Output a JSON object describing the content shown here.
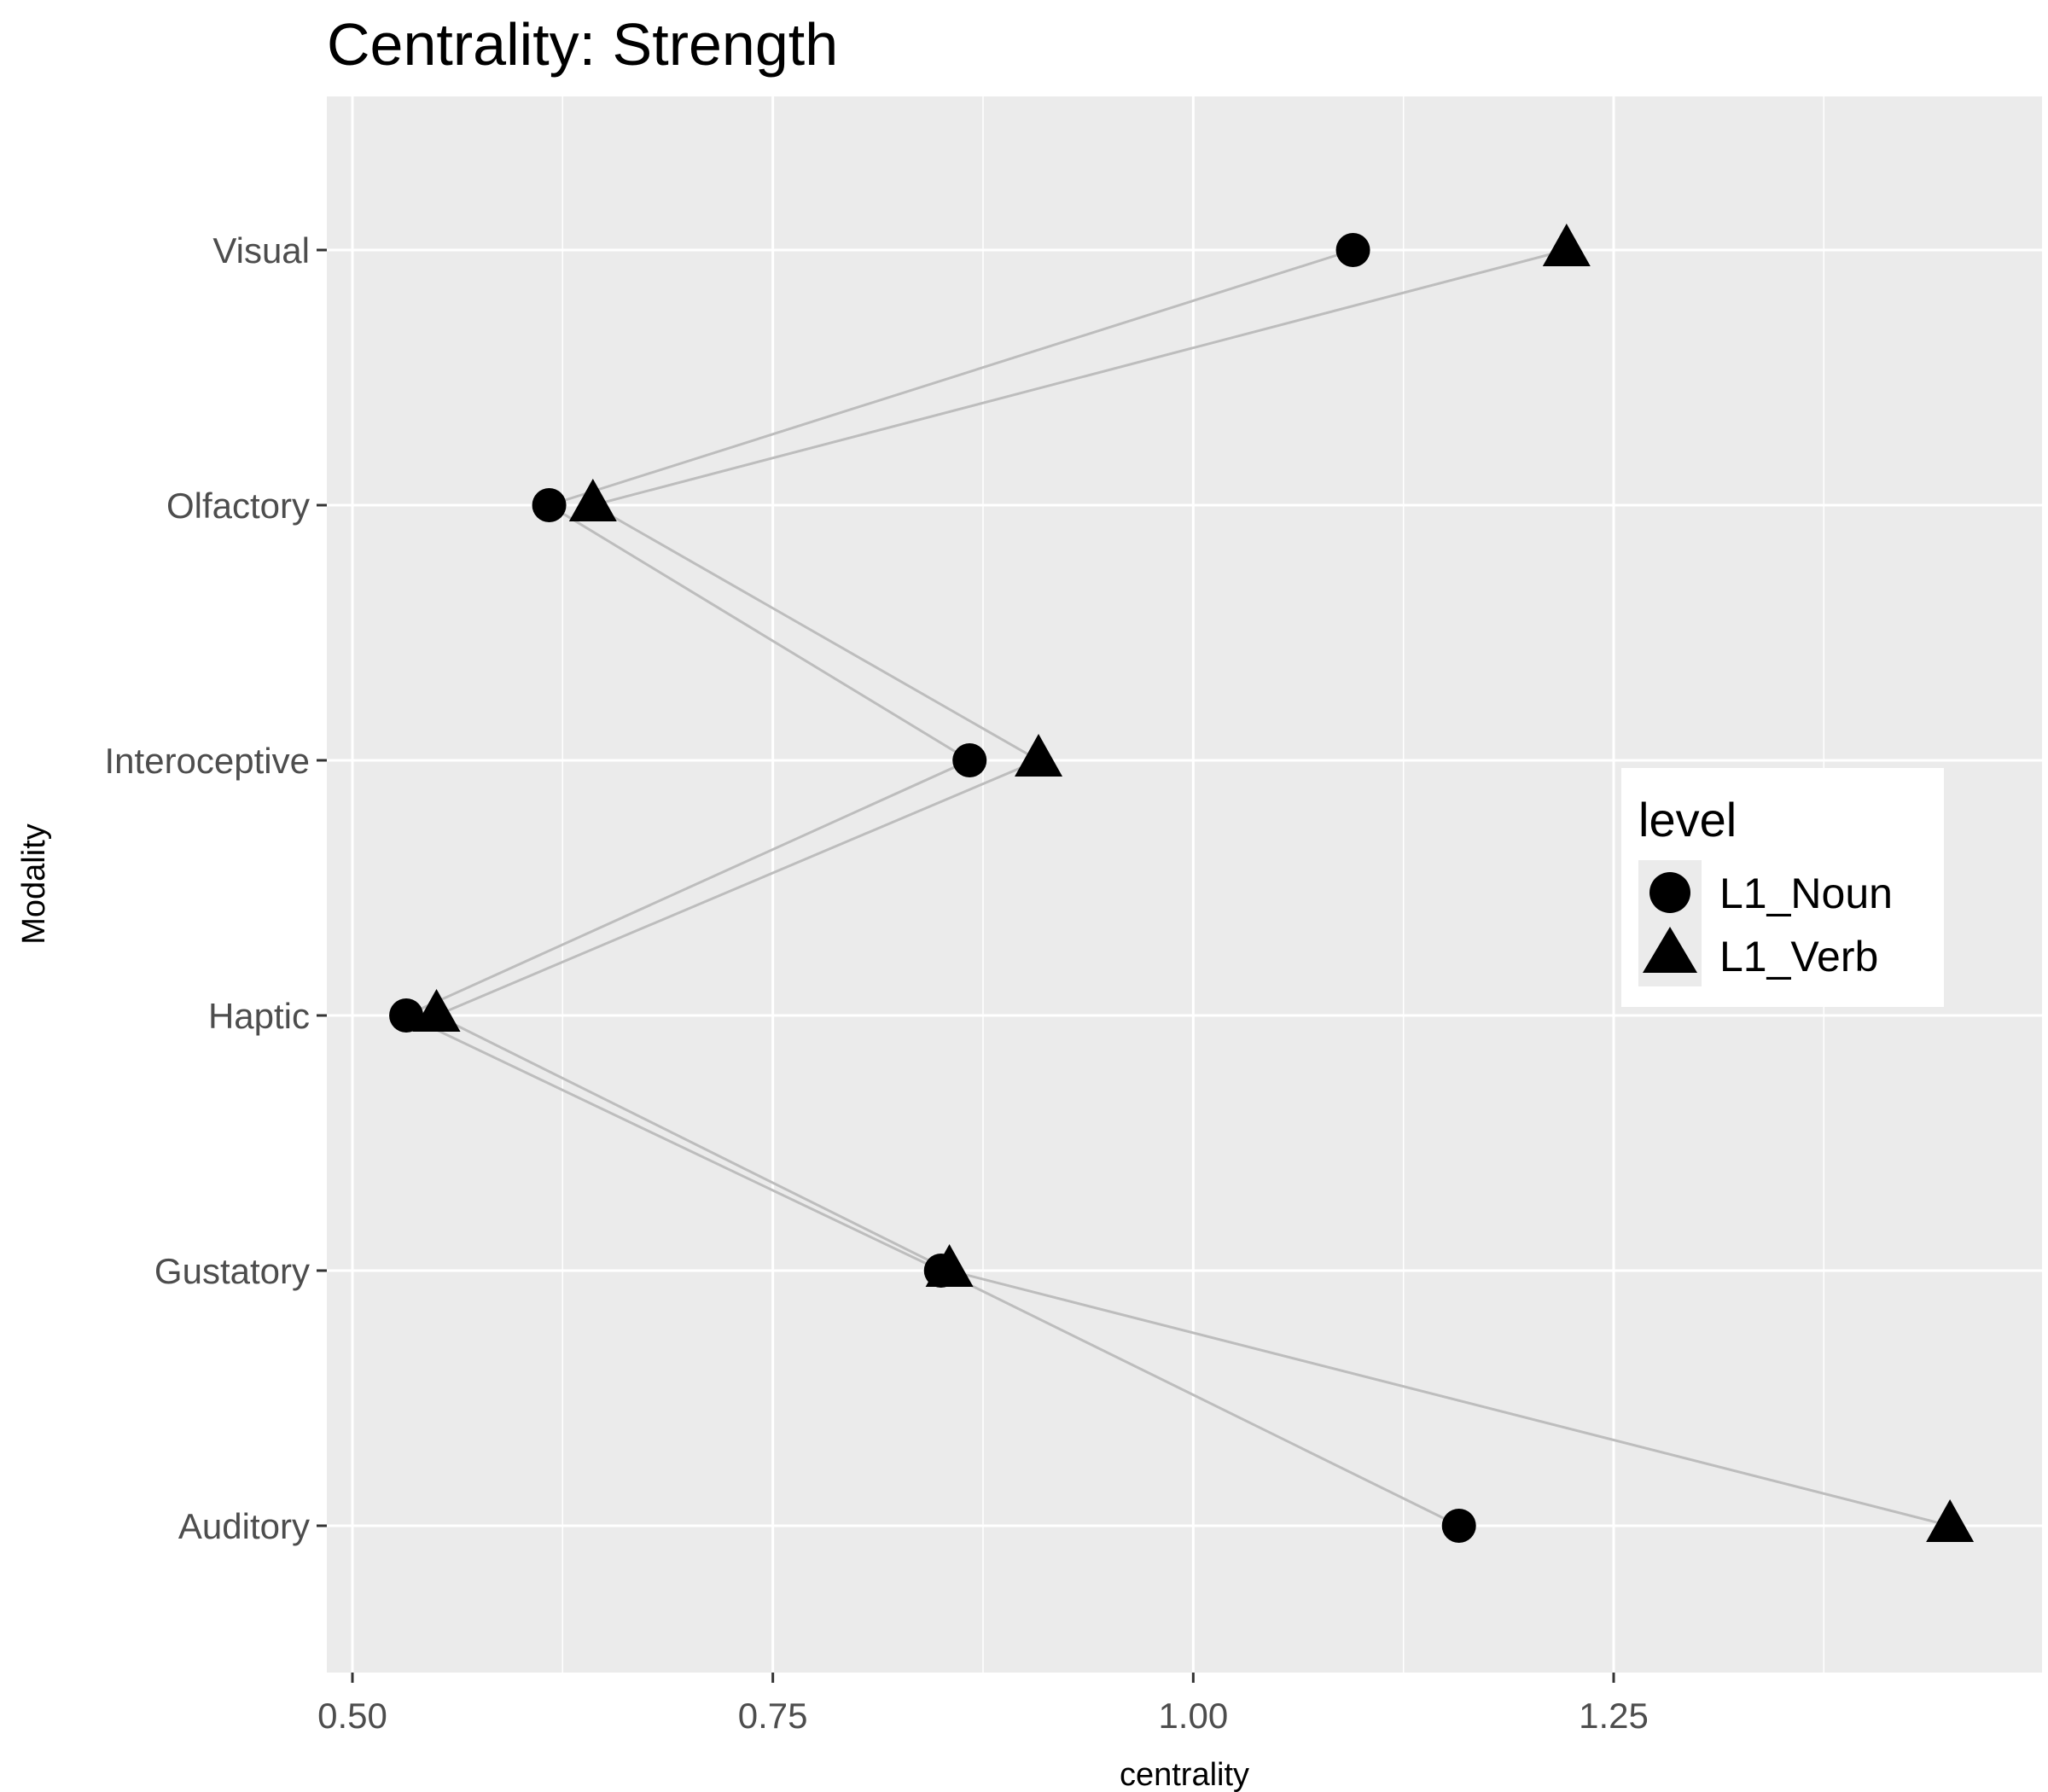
{
  "chart_data": {
    "type": "line",
    "title": "Centrality: Strength",
    "xlabel": "centrality",
    "ylabel": "Modality",
    "xlim": [
      0.485,
      1.5
    ],
    "x_ticks": [
      0.5,
      0.75,
      1.0,
      1.25
    ],
    "x_tick_labels": [
      "0.50",
      "0.75",
      "1.00",
      "1.25"
    ],
    "x_minor_ticks": [
      0.625,
      0.875,
      1.125,
      1.375
    ],
    "categories": [
      "Visual",
      "Olfactory",
      "Interoceptive",
      "Haptic",
      "Gustatory",
      "Auditory"
    ],
    "series": [
      {
        "name": "L1_Noun",
        "marker": "circle",
        "values": [
          1.095,
          0.617,
          0.867,
          0.532,
          0.85,
          1.158
        ]
      },
      {
        "name": "L1_Verb",
        "marker": "triangle",
        "values": [
          1.222,
          0.643,
          0.908,
          0.55,
          0.855,
          1.45
        ]
      }
    ],
    "grid": true,
    "line_color": "#bdbdbd",
    "marker_color": "#000000",
    "panel_color": "#ebebeb",
    "legend": {
      "title": "level",
      "placement": "right"
    }
  }
}
